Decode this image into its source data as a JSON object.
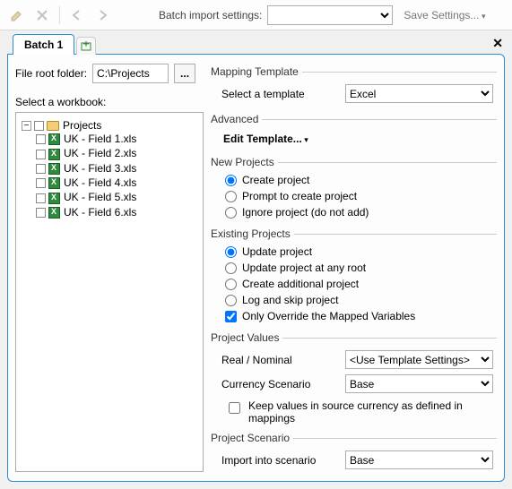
{
  "toolbar": {
    "batch_import_label": "Batch import settings:",
    "dropdown_value": "",
    "save_settings_label": "Save Settings..."
  },
  "tabs": {
    "active": "Batch 1"
  },
  "left": {
    "root_label": "File root folder:",
    "root_value": "C:\\Projects",
    "workbook_label": "Select a workbook:",
    "tree_root": "Projects",
    "files": [
      "UK - Field 1.xls",
      "UK - Field 2.xls",
      "UK - Field 3.xls",
      "UK - Field 4.xls",
      "UK - Field 5.xls",
      "UK - Field 6.xls"
    ]
  },
  "mapping": {
    "legend": "Mapping Template",
    "select_label": "Select a template",
    "select_value": "Excel"
  },
  "advanced": {
    "legend": "Advanced",
    "edit_label": "Edit Template..."
  },
  "newproj": {
    "legend": "New Projects",
    "options": {
      "create": "Create project",
      "prompt": "Prompt to create project",
      "ignore": "Ignore project (do not add)"
    },
    "selected": "create"
  },
  "existproj": {
    "legend": "Existing Projects",
    "options": {
      "update": "Update project",
      "update_any": "Update project at any root",
      "create_add": "Create additional project",
      "log_skip": "Log and skip project"
    },
    "selected": "update",
    "override_label": "Only Override the Mapped Variables",
    "override_checked": true
  },
  "values": {
    "legend": "Project Values",
    "real_label": "Real / Nominal",
    "real_value": "<Use Template Settings>",
    "currency_label": "Currency Scenario",
    "currency_value": "Base",
    "keep_label": "Keep values in source currency as defined in mappings",
    "keep_checked": false
  },
  "scenario": {
    "legend": "Project Scenario",
    "import_label": "Import into scenario",
    "import_value": "Base"
  }
}
